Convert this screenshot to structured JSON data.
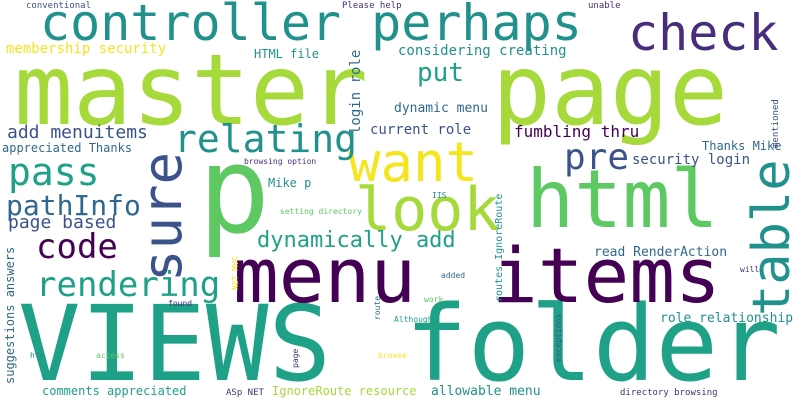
{
  "colors": {
    "background": "#ffffff",
    "lime": "#a6d93a",
    "yellow": "#f5e51f",
    "green": "#5ec962",
    "teal": "#21918c",
    "sea": "#1fa187",
    "blue": "#31688e",
    "navy": "#3b528b",
    "indigo": "#472d7b",
    "purple": "#440154"
  },
  "words": {
    "master_page_1": "master",
    "master_page_2": "page",
    "views_folder_1": "VIEWS",
    "views_folder_2": "folder",
    "menu_items_1": "menu",
    "menu_items_2": "items",
    "controller_perhaps": "controller perhaps",
    "check": "check",
    "p": "p",
    "html": "html",
    "want": "want",
    "look": "look",
    "sure": "sure",
    "table": "table",
    "relating": "relating",
    "put": "put",
    "pass": "pass",
    "pre": "pre",
    "code": "code",
    "pathinfo": "pathInfo",
    "rendering": "rendering",
    "dynamically_add": "dynamically add",
    "add_menuitems": "add menuitems",
    "page_based": "page based",
    "membership_security": "membership security",
    "considering_creating": "considering creating",
    "html_file": "HTML file",
    "login_role": "login role",
    "dynamic_menu": "dynamic menu",
    "current_role": "current role",
    "fumbling_thru": "fumbling thru",
    "security_login": "security login",
    "thanks_mike": "Thanks Mike",
    "appreciated_thanks": "appreciated Thanks",
    "mike_p": "Mike p",
    "read_renderaction": "read RenderAction",
    "role_relationship": "role relationship",
    "comments_appreciated": "comments appreciated",
    "allowable_menu": "allowable menu",
    "ignoreroute_resource": "IgnoreRoute resource",
    "asp_net": "ASp NET",
    "directory_browsing": "directory browsing",
    "conventional": "conventional",
    "please_help": "Please help",
    "unable": "unable",
    "mentioned": "mentioned",
    "browsing_option": "browsing option",
    "iis": "IIS",
    "setting_directory": "setting directory",
    "routes_ignoreroute": "routes IgnoreRoute",
    "net_mvc": "NET MVC",
    "added": "added",
    "will": "will",
    "found": "found",
    "route": "route",
    "work": "work",
    "although": "Although",
    "exceptions": "exceptions",
    "page_small": "page",
    "access": "access",
    "browse": "browse",
    "htm": "htm",
    "suggestions_answers": "suggestions answers"
  }
}
